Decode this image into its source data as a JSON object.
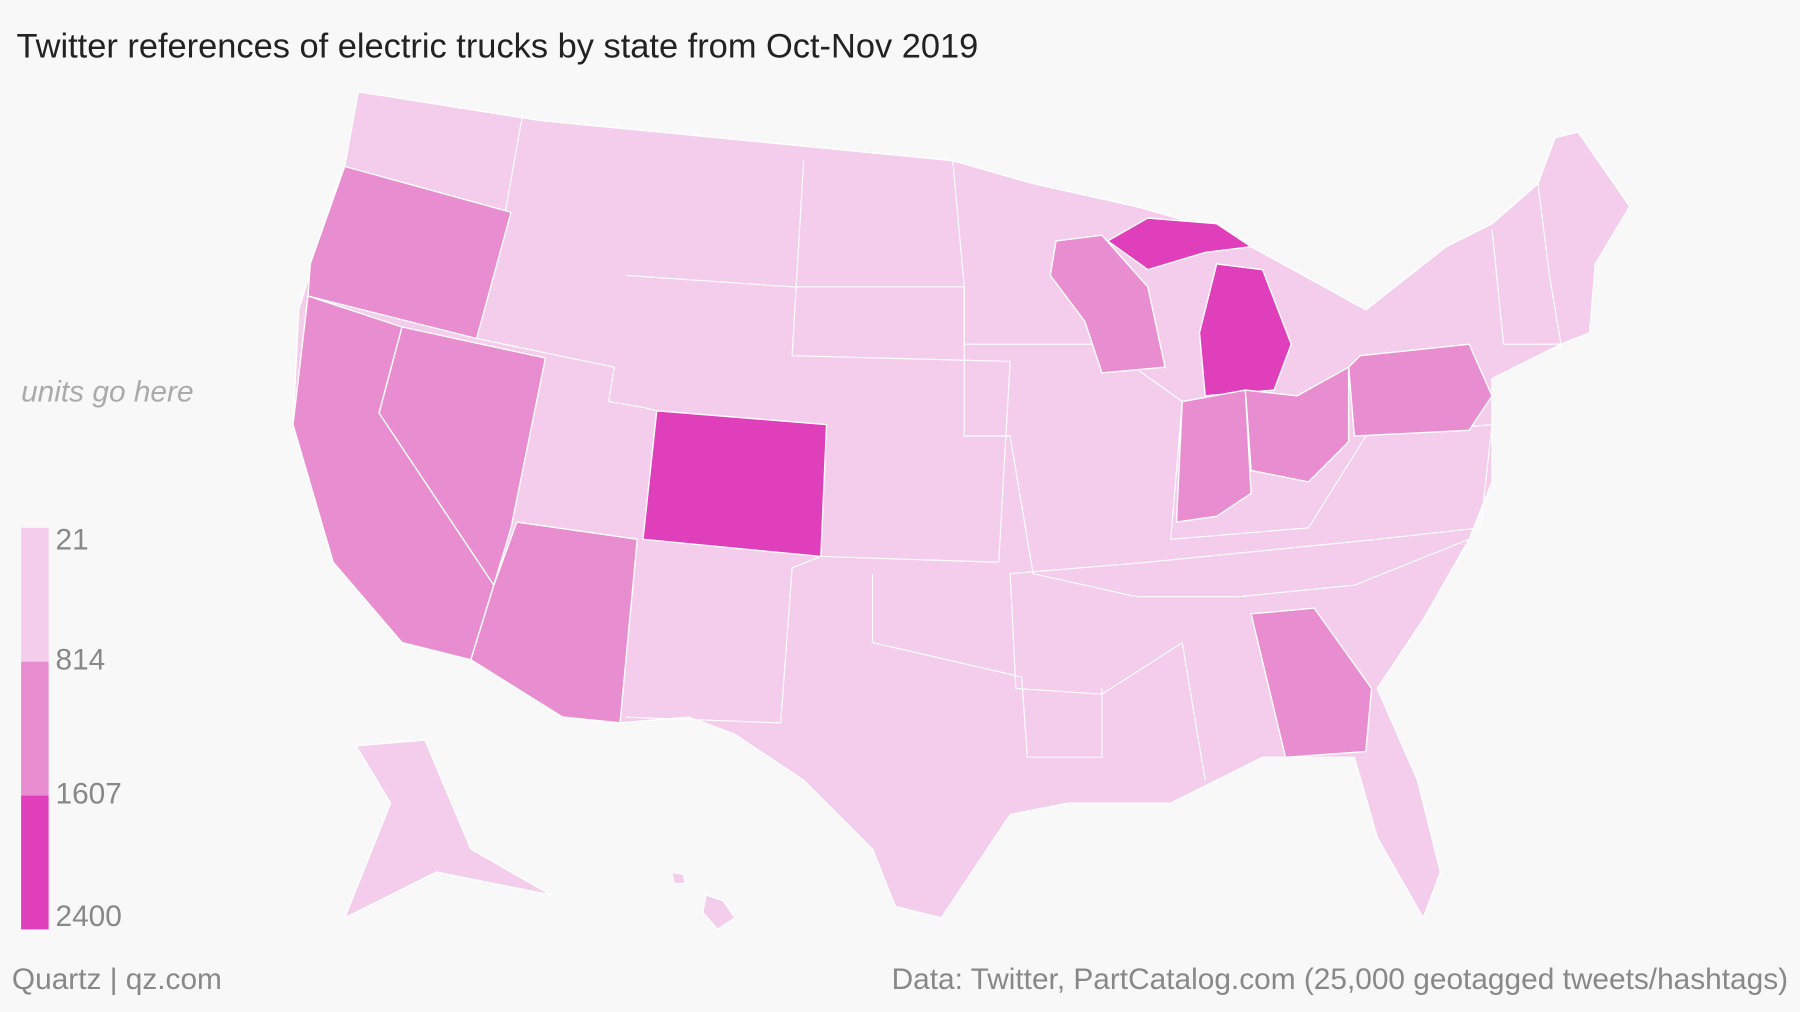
{
  "chart_data": {
    "type": "choropleth",
    "title": "Twitter references of electric trucks by state from Oct-Nov 2019",
    "units_label": "units go here",
    "legend": {
      "breaks": [
        21,
        814,
        1607,
        2400
      ],
      "colors": [
        "#f3cdeb",
        "#e88ed0",
        "#e03fbb"
      ]
    },
    "credit": "Quartz | qz.com",
    "source": "Data: Twitter, PartCatalog.com (25,000 geotagged tweets/hashtags)"
  }
}
